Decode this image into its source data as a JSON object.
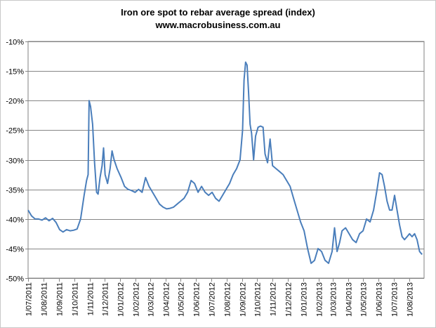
{
  "chart_data": {
    "type": "line",
    "title": "Iron ore spot to rebar average spread (index)",
    "subtitle": "www.macrobusiness.com.au",
    "xlabel": "",
    "ylabel": "",
    "ylim": [
      -50,
      -10
    ],
    "yticks": [
      -10,
      -15,
      -20,
      -25,
      -30,
      -35,
      -40,
      -45,
      -50
    ],
    "ytick_labels": [
      "-10%",
      "-15%",
      "-20%",
      "-25%",
      "-30%",
      "-35%",
      "-40%",
      "-45%",
      "-50%"
    ],
    "x_categories": [
      "1/07/2011",
      "1/08/2011",
      "1/09/2011",
      "1/10/2011",
      "1/11/2011",
      "1/12/2011",
      "1/01/2012",
      "1/02/2012",
      "1/03/2012",
      "1/04/2012",
      "1/05/2012",
      "1/06/2012",
      "1/07/2012",
      "1/08/2012",
      "1/09/2012",
      "1/10/2012",
      "1/11/2012",
      "1/12/2012",
      "1/01/2013",
      "1/02/2013",
      "1/03/2013",
      "1/04/2013",
      "1/05/2013",
      "1/06/2013",
      "1/07/2013",
      "1/08/2013"
    ],
    "x_range": [
      "1/07/2011",
      "31/08/2013"
    ],
    "grid": true,
    "line_color": "#4a7ebb",
    "series": [
      {
        "values": [
          [
            "1/07/2011",
            -38.5
          ],
          [
            "8/07/2011",
            -39.5
          ],
          [
            "15/07/2011",
            -40.0
          ],
          [
            "22/07/2011",
            -40.0
          ],
          [
            "29/07/2011",
            -40.2
          ],
          [
            "5/08/2011",
            -39.8
          ],
          [
            "12/08/2011",
            -40.3
          ],
          [
            "19/08/2011",
            -39.9
          ],
          [
            "26/08/2011",
            -40.6
          ],
          [
            "2/09/2011",
            -41.8
          ],
          [
            "9/09/2011",
            -42.2
          ],
          [
            "16/09/2011",
            -41.8
          ],
          [
            "23/09/2011",
            -42.0
          ],
          [
            "30/09/2011",
            -41.9
          ],
          [
            "7/10/2011",
            -41.7
          ],
          [
            "14/10/2011",
            -40.0
          ],
          [
            "21/10/2011",
            -36.0
          ],
          [
            "26/10/2011",
            -33.5
          ],
          [
            "29/10/2011",
            -32.5
          ],
          [
            "31/10/2011",
            -20.0
          ],
          [
            "3/11/2011",
            -21.0
          ],
          [
            "7/11/2011",
            -24.0
          ],
          [
            "11/11/2011",
            -30.5
          ],
          [
            "15/11/2011",
            -35.5
          ],
          [
            "18/11/2011",
            -35.8
          ],
          [
            "22/11/2011",
            -33.0
          ],
          [
            "26/11/2011",
            -31.0
          ],
          [
            "29/11/2011",
            -28.0
          ],
          [
            "2/12/2011",
            -32.5
          ],
          [
            "7/12/2011",
            -34.0
          ],
          [
            "12/12/2011",
            -31.5
          ],
          [
            "16/12/2011",
            -28.5
          ],
          [
            "20/12/2011",
            -30.0
          ],
          [
            "26/12/2011",
            -31.5
          ],
          [
            "3/01/2012",
            -33.0
          ],
          [
            "10/01/2012",
            -34.5
          ],
          [
            "17/01/2012",
            -35.0
          ],
          [
            "24/01/2012",
            -35.2
          ],
          [
            "31/01/2012",
            -35.5
          ],
          [
            "7/02/2012",
            -35.0
          ],
          [
            "14/02/2012",
            -35.5
          ],
          [
            "21/02/2012",
            -33.0
          ],
          [
            "28/02/2012",
            -34.5
          ],
          [
            "6/03/2012",
            -35.5
          ],
          [
            "13/03/2012",
            -36.5
          ],
          [
            "20/03/2012",
            -37.5
          ],
          [
            "27/03/2012",
            -38.0
          ],
          [
            "3/04/2012",
            -38.3
          ],
          [
            "10/04/2012",
            -38.2
          ],
          [
            "17/04/2012",
            -38.0
          ],
          [
            "24/04/2012",
            -37.5
          ],
          [
            "1/05/2012",
            -37.0
          ],
          [
            "8/05/2012",
            -36.5
          ],
          [
            "15/05/2012",
            -35.5
          ],
          [
            "22/05/2012",
            -33.5
          ],
          [
            "29/05/2012",
            -34.0
          ],
          [
            "5/06/2012",
            -35.5
          ],
          [
            "12/06/2012",
            -34.5
          ],
          [
            "19/06/2012",
            -35.5
          ],
          [
            "26/06/2012",
            -36.0
          ],
          [
            "3/07/2012",
            -35.5
          ],
          [
            "10/07/2012",
            -36.5
          ],
          [
            "17/07/2012",
            -37.0
          ],
          [
            "24/07/2012",
            -36.0
          ],
          [
            "31/07/2012",
            -35.0
          ],
          [
            "7/08/2012",
            -34.0
          ],
          [
            "14/08/2012",
            -32.5
          ],
          [
            "21/08/2012",
            -31.5
          ],
          [
            "28/08/2012",
            -30.0
          ],
          [
            "2/09/2012",
            -25.0
          ],
          [
            "5/09/2012",
            -16.5
          ],
          [
            "8/09/2012",
            -13.5
          ],
          [
            "11/09/2012",
            -14.0
          ],
          [
            "14/09/2012",
            -18.5
          ],
          [
            "17/09/2012",
            -24.0
          ],
          [
            "20/09/2012",
            -25.5
          ],
          [
            "24/09/2012",
            -30.0
          ],
          [
            "28/09/2012",
            -26.0
          ],
          [
            "3/10/2012",
            -24.5
          ],
          [
            "8/10/2012",
            -24.3
          ],
          [
            "13/10/2012",
            -24.5
          ],
          [
            "17/10/2012",
            -29.0
          ],
          [
            "22/10/2012",
            -30.5
          ],
          [
            "27/10/2012",
            -26.5
          ],
          [
            "1/11/2012",
            -31.0
          ],
          [
            "8/11/2012",
            -31.5
          ],
          [
            "15/11/2012",
            -32.0
          ],
          [
            "22/11/2012",
            -32.5
          ],
          [
            "29/11/2012",
            -33.5
          ],
          [
            "6/12/2012",
            -34.5
          ],
          [
            "13/12/2012",
            -36.5
          ],
          [
            "20/12/2012",
            -38.5
          ],
          [
            "27/12/2012",
            -40.5
          ],
          [
            "3/01/2013",
            -42.0
          ],
          [
            "10/01/2013",
            -45.0
          ],
          [
            "17/01/2013",
            -47.5
          ],
          [
            "24/01/2013",
            -47.0
          ],
          [
            "31/01/2013",
            -45.0
          ],
          [
            "7/02/2013",
            -45.5
          ],
          [
            "14/02/2013",
            -47.0
          ],
          [
            "21/02/2013",
            -47.5
          ],
          [
            "28/02/2013",
            -45.5
          ],
          [
            "5/03/2013",
            -41.5
          ],
          [
            "10/03/2013",
            -45.5
          ],
          [
            "15/03/2013",
            -44.0
          ],
          [
            "20/03/2013",
            -42.0
          ],
          [
            "27/03/2013",
            -41.5
          ],
          [
            "3/04/2013",
            -42.5
          ],
          [
            "10/04/2013",
            -43.5
          ],
          [
            "17/04/2013",
            -44.0
          ],
          [
            "24/04/2013",
            -42.5
          ],
          [
            "1/05/2013",
            -42.0
          ],
          [
            "8/05/2013",
            -40.0
          ],
          [
            "15/05/2013",
            -40.5
          ],
          [
            "22/05/2013",
            -38.5
          ],
          [
            "29/05/2013",
            -35.0
          ],
          [
            "3/06/2013",
            -32.2
          ],
          [
            "8/06/2013",
            -32.5
          ],
          [
            "13/06/2013",
            -34.5
          ],
          [
            "18/06/2013",
            -37.0
          ],
          [
            "23/06/2013",
            -38.5
          ],
          [
            "28/06/2013",
            -38.5
          ],
          [
            "3/07/2013",
            -36.0
          ],
          [
            "8/07/2013",
            -38.5
          ],
          [
            "13/07/2013",
            -41.0
          ],
          [
            "18/07/2013",
            -43.0
          ],
          [
            "23/07/2013",
            -43.5
          ],
          [
            "28/07/2013",
            -43.0
          ],
          [
            "2/08/2013",
            -42.5
          ],
          [
            "7/08/2013",
            -43.0
          ],
          [
            "12/08/2013",
            -42.5
          ],
          [
            "17/08/2013",
            -43.5
          ],
          [
            "22/08/2013",
            -45.5
          ],
          [
            "27/08/2013",
            -46.0
          ]
        ]
      }
    ]
  }
}
